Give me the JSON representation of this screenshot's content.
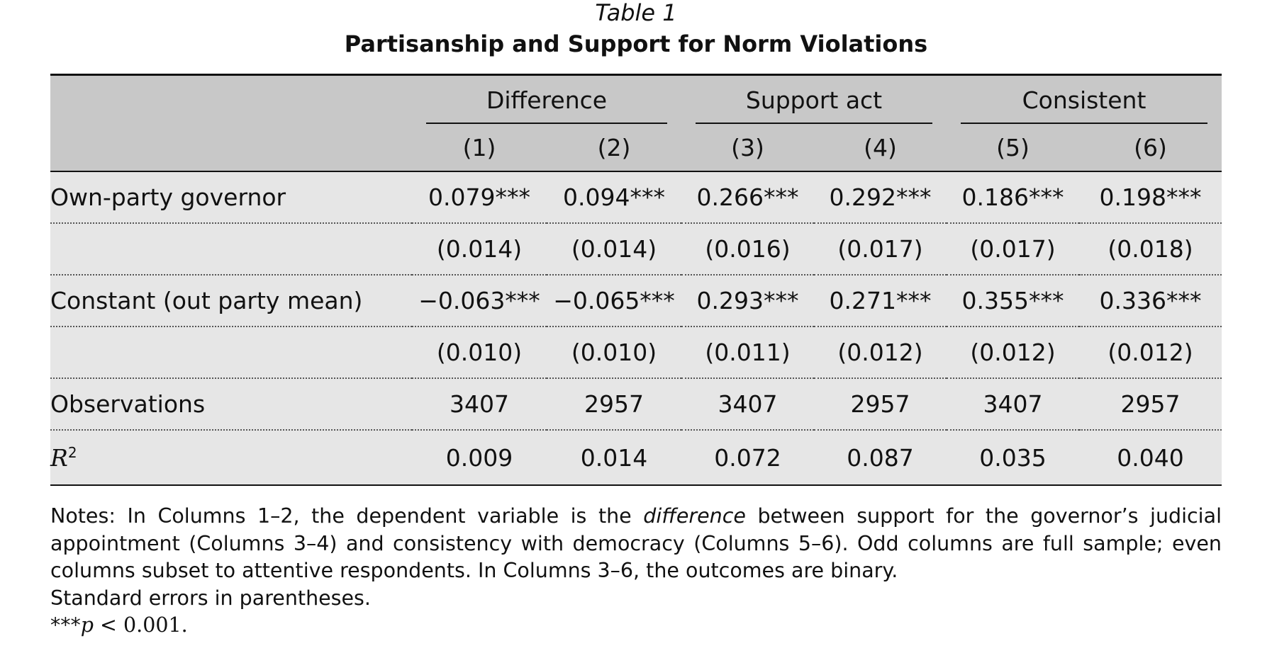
{
  "caption": {
    "label": "Table 1",
    "title": "Partisanship and Support for Norm Violations"
  },
  "table": {
    "groups": [
      {
        "label": "Difference",
        "span": 2
      },
      {
        "label": "Support act",
        "span": 2
      },
      {
        "label": "Consistent",
        "span": 2
      }
    ],
    "columns": [
      "(1)",
      "(2)",
      "(3)",
      "(4)",
      "(5)",
      "(6)"
    ],
    "rows": [
      {
        "label": "Own-party governor",
        "values": [
          "0.079***",
          "0.094***",
          "0.266***",
          "0.292***",
          "0.186***",
          "0.198***"
        ]
      },
      {
        "label": "",
        "values": [
          "(0.014)",
          "(0.014)",
          "(0.016)",
          "(0.017)",
          "(0.017)",
          "(0.018)"
        ]
      },
      {
        "label": "Constant (out party mean)",
        "values": [
          "−0.063***",
          "−0.065***",
          "0.293***",
          "0.271***",
          "0.355***",
          "0.336***"
        ]
      },
      {
        "label": "",
        "values": [
          "(0.010)",
          "(0.010)",
          "(0.011)",
          "(0.012)",
          "(0.012)",
          "(0.012)"
        ]
      },
      {
        "label": "Observations",
        "values": [
          "3407",
          "2957",
          "3407",
          "2957",
          "3407",
          "2957"
        ]
      },
      {
        "label": "R",
        "label_sup": "2",
        "values": [
          "0.009",
          "0.014",
          "0.072",
          "0.087",
          "0.035",
          "0.040"
        ]
      }
    ]
  },
  "notes": {
    "p1_before": "Notes: In Columns 1–2, the dependent variable is the ",
    "p1_em": "difference",
    "p1_after": " between support for the governor’s judicial appointment (Columns 3–4) and consistency with democracy (Columns 5–6). Odd columns are full sample; even columns subset to attentive respondents. In Columns 3–6, the outcomes are binary.",
    "p2": "Standard errors in parentheses.",
    "p3_stars": "***",
    "p3_var": "p",
    "p3_rest": " < 0.001."
  }
}
